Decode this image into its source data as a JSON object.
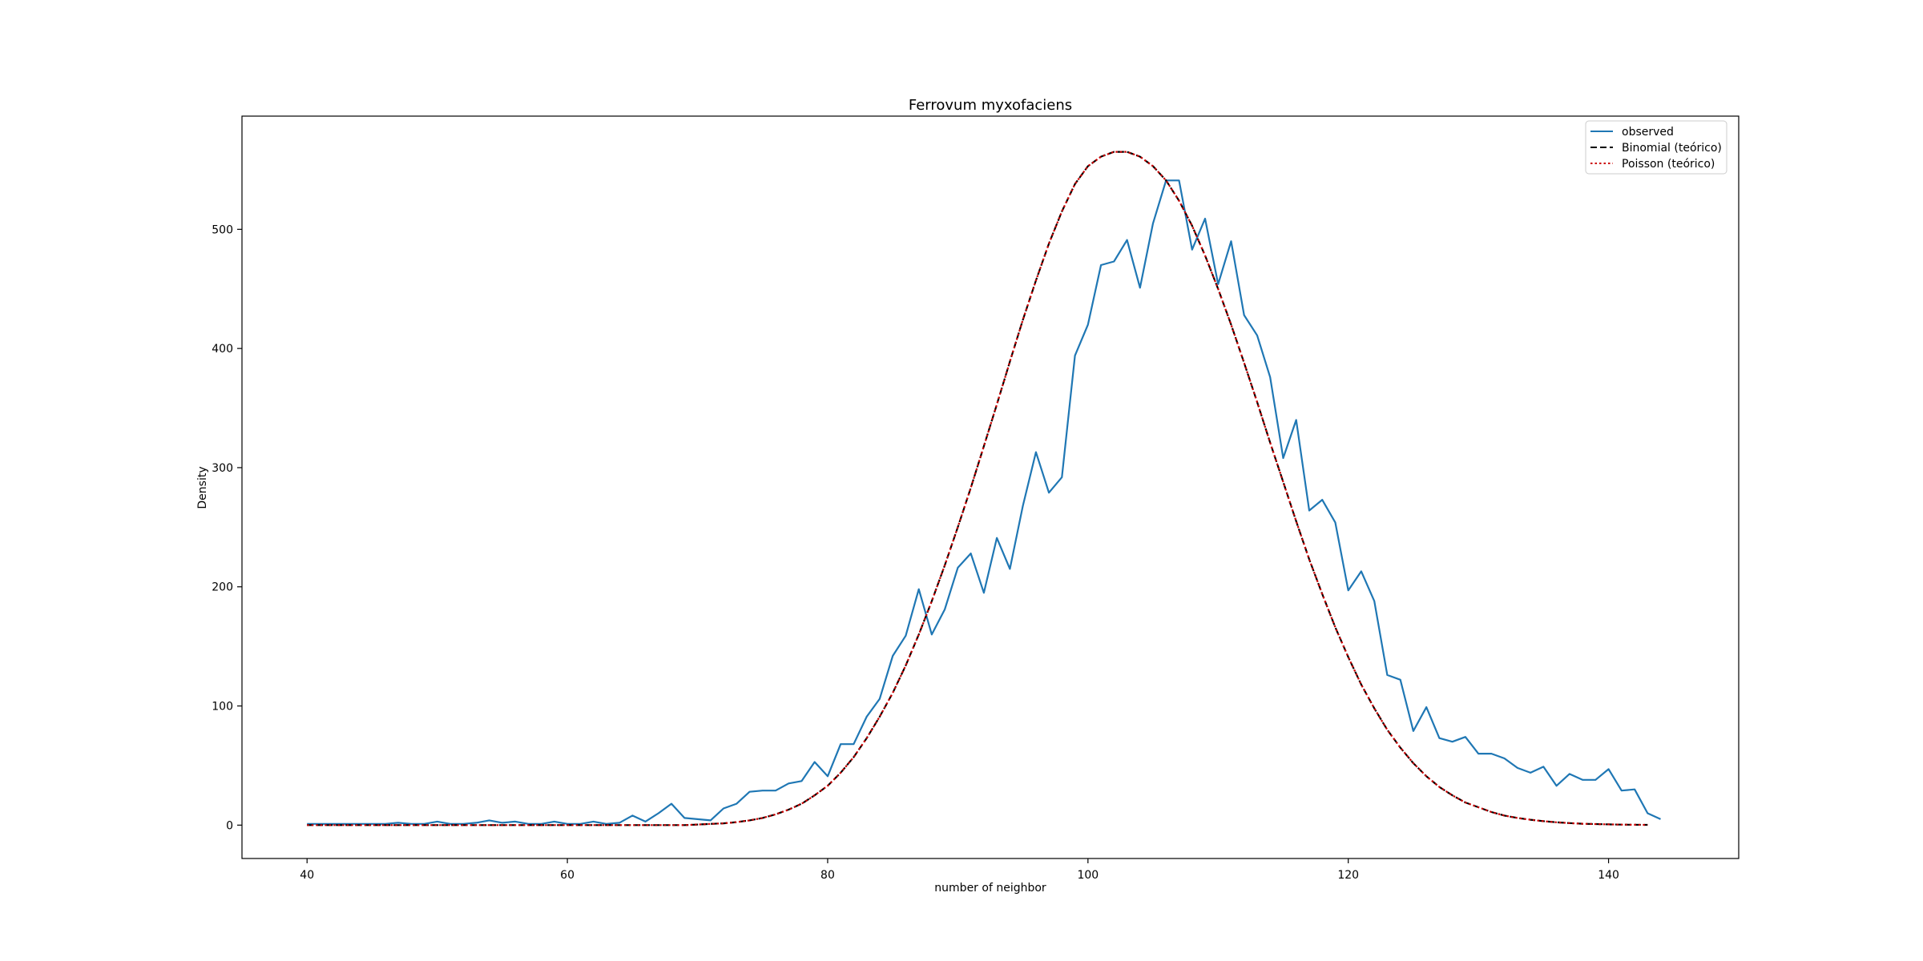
{
  "chart_data": {
    "type": "line",
    "title": "Ferrovum myxofaciens",
    "xlabel": "number of neighbor",
    "ylabel": "Density",
    "xlim": [
      35,
      150
    ],
    "ylim": [
      -28,
      595
    ],
    "xticks": [
      40,
      60,
      80,
      100,
      120,
      140
    ],
    "yticks": [
      0,
      100,
      200,
      300,
      400,
      500
    ],
    "grid": false,
    "legend_position": "top-right",
    "series": [
      {
        "name": "observed",
        "color": "#1f77b4",
        "style": "solid",
        "x": [
          40,
          41,
          42,
          43,
          44,
          45,
          46,
          47,
          48,
          49,
          50,
          51,
          52,
          53,
          54,
          55,
          56,
          57,
          58,
          59,
          60,
          61,
          62,
          63,
          64,
          65,
          66,
          67,
          68,
          69,
          70,
          71,
          72,
          73,
          74,
          75,
          76,
          77,
          78,
          79,
          80,
          81,
          82,
          83,
          84,
          85,
          86,
          87,
          88,
          89,
          90,
          91,
          92,
          93,
          94,
          95,
          96,
          97,
          98,
          99,
          100,
          101,
          102,
          103,
          104,
          105,
          106,
          107,
          108,
          109,
          110,
          111,
          112,
          113,
          114,
          115,
          116,
          117,
          118,
          119,
          120,
          121,
          122,
          123,
          124,
          125,
          126,
          127,
          128,
          129,
          130,
          131,
          132,
          133,
          134,
          135,
          136,
          137,
          138,
          139,
          140,
          141,
          142,
          143,
          144
        ],
        "y": [
          1,
          1,
          1,
          1,
          1,
          1,
          1,
          2,
          1,
          1,
          3,
          1,
          1,
          2,
          4,
          2,
          3,
          1,
          1,
          3,
          1,
          1,
          3,
          1,
          2,
          8,
          3,
          10,
          18,
          6,
          5,
          4,
          14,
          18,
          28,
          29,
          29,
          35,
          37,
          53,
          41,
          68,
          68,
          91,
          106,
          142,
          159,
          198,
          160,
          181,
          216,
          228,
          195,
          241,
          215,
          268,
          313,
          279,
          292,
          394,
          420,
          470,
          473,
          491,
          451,
          505,
          541,
          541,
          483,
          509,
          454,
          490,
          428,
          411,
          376,
          308,
          340,
          264,
          273,
          254,
          197,
          213,
          188,
          126,
          122,
          79,
          99,
          73,
          70,
          74,
          60,
          60,
          56,
          48,
          44,
          49,
          33,
          43,
          38,
          38,
          47,
          29,
          30,
          10,
          5
        ]
      },
      {
        "name": "Binomial (teórico)",
        "color": "#000000",
        "style": "dashed",
        "x": [
          40,
          41,
          42,
          43,
          44,
          45,
          46,
          47,
          48,
          49,
          50,
          51,
          52,
          53,
          54,
          55,
          56,
          57,
          58,
          59,
          60,
          61,
          62,
          63,
          64,
          65,
          66,
          67,
          68,
          69,
          70,
          71,
          72,
          73,
          74,
          75,
          76,
          77,
          78,
          79,
          80,
          81,
          82,
          83,
          84,
          85,
          86,
          87,
          88,
          89,
          90,
          91,
          92,
          93,
          94,
          95,
          96,
          97,
          98,
          99,
          100,
          101,
          102,
          103,
          104,
          105,
          106,
          107,
          108,
          109,
          110,
          111,
          112,
          113,
          114,
          115,
          116,
          117,
          118,
          119,
          120,
          121,
          122,
          123,
          124,
          125,
          126,
          127,
          128,
          129,
          130,
          131,
          132,
          133,
          134,
          135,
          136,
          137,
          138,
          139,
          140,
          141,
          142,
          143
        ],
        "y": [
          0,
          0,
          0,
          0,
          0,
          0,
          0,
          0,
          0,
          0,
          0,
          0,
          0,
          0,
          0,
          0,
          0,
          0,
          0,
          0,
          0,
          0,
          0,
          0,
          0,
          0,
          0,
          0,
          0,
          0,
          0.5,
          1,
          1.5,
          2.5,
          4,
          6,
          9,
          13,
          18,
          25,
          33,
          44,
          57,
          73,
          91,
          111,
          134,
          160,
          188,
          218,
          250,
          283,
          318,
          353,
          389,
          424,
          457,
          488,
          515,
          538,
          553,
          561,
          565,
          565,
          561,
          553,
          541,
          524,
          503,
          478,
          450,
          420,
          388,
          355,
          321,
          288,
          255,
          223,
          194,
          166,
          141,
          118,
          98,
          80,
          65,
          52,
          41,
          32,
          25,
          19,
          15,
          11,
          8,
          6,
          4.5,
          3.3,
          2.4,
          1.7,
          1.2,
          0.9,
          0.6,
          0.4,
          0.3,
          0.2
        ]
      },
      {
        "name": "Poisson (teórico)",
        "color": "#cc0000",
        "style": "dotted",
        "x": [
          40,
          41,
          42,
          43,
          44,
          45,
          46,
          47,
          48,
          49,
          50,
          51,
          52,
          53,
          54,
          55,
          56,
          57,
          58,
          59,
          60,
          61,
          62,
          63,
          64,
          65,
          66,
          67,
          68,
          69,
          70,
          71,
          72,
          73,
          74,
          75,
          76,
          77,
          78,
          79,
          80,
          81,
          82,
          83,
          84,
          85,
          86,
          87,
          88,
          89,
          90,
          91,
          92,
          93,
          94,
          95,
          96,
          97,
          98,
          99,
          100,
          101,
          102,
          103,
          104,
          105,
          106,
          107,
          108,
          109,
          110,
          111,
          112,
          113,
          114,
          115,
          116,
          117,
          118,
          119,
          120,
          121,
          122,
          123,
          124,
          125,
          126,
          127,
          128,
          129,
          130,
          131,
          132,
          133,
          134,
          135,
          136,
          137,
          138,
          139,
          140,
          141,
          142,
          143
        ],
        "y": [
          0,
          0,
          0,
          0,
          0,
          0,
          0,
          0,
          0,
          0,
          0,
          0,
          0,
          0,
          0,
          0,
          0,
          0,
          0,
          0,
          0,
          0,
          0,
          0,
          0,
          0,
          0,
          0,
          0,
          0,
          0.5,
          1,
          1.5,
          2.5,
          4,
          6,
          9,
          13,
          18,
          25,
          33,
          44,
          57,
          73,
          91,
          111,
          134,
          160,
          188,
          218,
          250,
          283,
          318,
          353,
          389,
          424,
          457,
          488,
          515,
          538,
          553,
          561,
          565,
          565,
          561,
          553,
          541,
          524,
          503,
          478,
          450,
          420,
          388,
          355,
          321,
          288,
          255,
          223,
          194,
          166,
          141,
          118,
          98,
          80,
          65,
          52,
          41,
          32,
          25,
          19,
          15,
          11,
          8,
          6,
          4.5,
          3.3,
          2.4,
          1.7,
          1.2,
          0.9,
          0.6,
          0.4,
          0.3,
          0.2
        ]
      }
    ]
  }
}
